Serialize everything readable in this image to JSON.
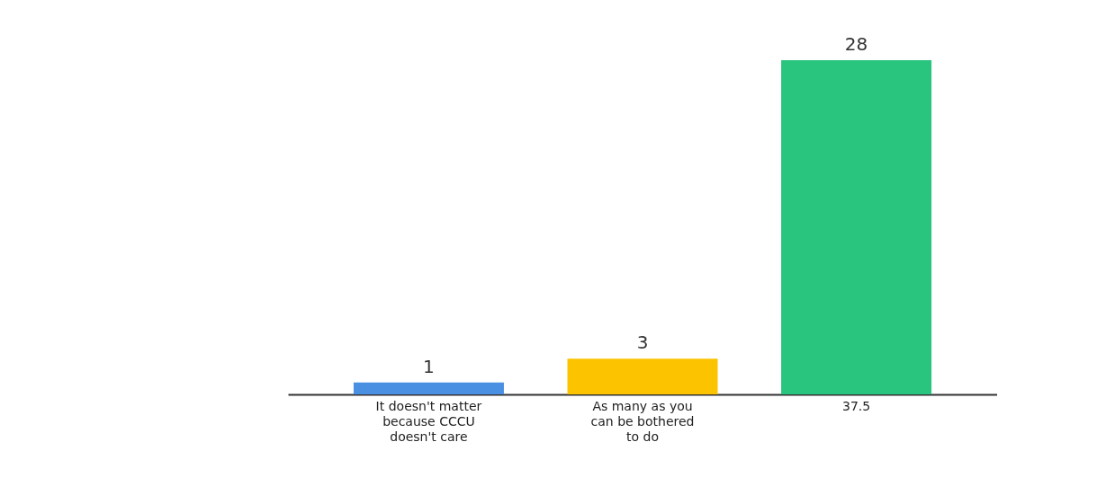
{
  "chart_data": {
    "type": "bar",
    "categories": [
      "It doesn't matter because CCCU doesn't care",
      "As many as you can be bothered to do",
      "37.5"
    ],
    "values": [
      1,
      3,
      28
    ],
    "colors": [
      "#4a90e2",
      "#fbc300",
      "#29c47e"
    ],
    "data_labels": true
  }
}
